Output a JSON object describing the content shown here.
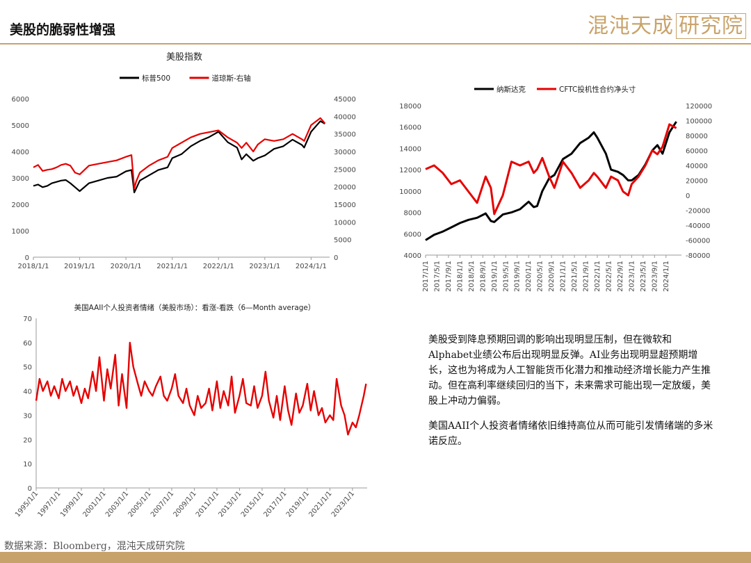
{
  "header": {
    "title": "美股的脆弱性增强",
    "logo_text": "混沌天成",
    "logo_boxed": "研究院"
  },
  "footer": {
    "source": "数据来源：Bloomberg，混沌天成研究院"
  },
  "commentary": {
    "p1": "美股受到降息预期回调的影响出现明显压制，但在微软和Alphabet业绩公布后出现明显反弹。AI业务出现明显超预期增长，这也为将成为人工智能货币化潜力和推动经济增长能力产生推动。但在高利率继续回归的当下，未来需求可能出现一定放缓，美股上冲动力偏弱。",
    "p2": "美国AAII个人投资者情绪依旧维持高位从而可能引发情绪端的多米诺反应。"
  },
  "colors": {
    "black_series": "#000000",
    "red_series": "#e60000",
    "gold": "#c8a26b"
  },
  "chart_data": [
    {
      "type": "line",
      "title": "美股指数",
      "series": [
        {
          "name": "标普500",
          "color": "#000000",
          "axis": "left",
          "x": [
            2018.0,
            2018.1,
            2018.2,
            2018.3,
            2018.4,
            2018.5,
            2018.6,
            2018.7,
            2018.8,
            2018.9,
            2019.0,
            2019.2,
            2019.4,
            2019.6,
            2019.8,
            2020.0,
            2020.12,
            2020.18,
            2020.22,
            2020.3,
            2020.5,
            2020.7,
            2020.9,
            2021.0,
            2021.2,
            2021.4,
            2021.6,
            2021.8,
            2022.0,
            2022.2,
            2022.4,
            2022.5,
            2022.6,
            2022.75,
            2022.85,
            2023.0,
            2023.2,
            2023.4,
            2023.6,
            2023.8,
            2023.85,
            2024.0,
            2024.2,
            2024.3
          ],
          "values": [
            2700,
            2750,
            2650,
            2700,
            2800,
            2850,
            2900,
            2920,
            2800,
            2650,
            2500,
            2800,
            2900,
            3000,
            3050,
            3250,
            3300,
            2450,
            2600,
            2900,
            3100,
            3300,
            3400,
            3750,
            3900,
            4200,
            4400,
            4550,
            4750,
            4350,
            4150,
            3700,
            3900,
            3650,
            3750,
            3850,
            4100,
            4200,
            4450,
            4250,
            4150,
            4750,
            5150,
            5050
          ]
        },
        {
          "name": "道琼斯-右轴",
          "color": "#e60000",
          "axis": "right",
          "x": [
            2018.0,
            2018.1,
            2018.2,
            2018.3,
            2018.4,
            2018.5,
            2018.6,
            2018.7,
            2018.8,
            2018.9,
            2019.0,
            2019.2,
            2019.4,
            2019.6,
            2019.8,
            2020.0,
            2020.12,
            2020.18,
            2020.22,
            2020.3,
            2020.5,
            2020.7,
            2020.9,
            2021.0,
            2021.2,
            2021.4,
            2021.6,
            2021.8,
            2022.0,
            2022.2,
            2022.4,
            2022.5,
            2022.6,
            2022.75,
            2022.85,
            2023.0,
            2023.2,
            2023.4,
            2023.6,
            2023.8,
            2023.85,
            2024.0,
            2024.2,
            2024.3
          ],
          "values": [
            25500,
            26200,
            24500,
            24800,
            25000,
            25500,
            26200,
            26500,
            26000,
            24000,
            23500,
            26000,
            26500,
            27000,
            27500,
            28500,
            29000,
            19500,
            21500,
            24000,
            26000,
            27500,
            28500,
            31000,
            32500,
            34000,
            35000,
            35500,
            36000,
            34000,
            32500,
            31000,
            32500,
            30000,
            32000,
            33500,
            33000,
            33500,
            35000,
            33500,
            33000,
            37500,
            39500,
            38000
          ]
        }
      ],
      "xticks": [
        "2018/1/1",
        "2019/1/1",
        "2020/1/1",
        "2021/1/1",
        "2022/1/1",
        "2023/1/1",
        "2024/1/1"
      ],
      "ylim": [
        0,
        6000
      ],
      "yticks": [
        0,
        1000,
        2000,
        3000,
        4000,
        5000,
        6000
      ],
      "y2lim": [
        0,
        45000
      ],
      "y2ticks": [
        0,
        5000,
        10000,
        15000,
        20000,
        25000,
        30000,
        35000,
        40000,
        45000
      ],
      "legend": "top"
    },
    {
      "type": "line",
      "title": "",
      "series": [
        {
          "name": "纳斯达克",
          "color": "#000000",
          "axis": "left",
          "x": [
            2017.0,
            2017.25,
            2017.5,
            2017.75,
            2018.0,
            2018.25,
            2018.5,
            2018.75,
            2018.9,
            2019.0,
            2019.25,
            2019.5,
            2019.75,
            2020.0,
            2020.15,
            2020.25,
            2020.4,
            2020.6,
            2020.75,
            2021.0,
            2021.25,
            2021.5,
            2021.75,
            2021.9,
            2022.0,
            2022.25,
            2022.4,
            2022.6,
            2022.75,
            2022.9,
            2023.0,
            2023.2,
            2023.4,
            2023.6,
            2023.75,
            2023.9,
            2024.1,
            2024.3
          ],
          "values": [
            5400,
            5900,
            6200,
            6600,
            7000,
            7300,
            7500,
            7900,
            7200,
            7100,
            7800,
            8000,
            8300,
            9000,
            8500,
            8600,
            10000,
            11200,
            11500,
            13000,
            13500,
            14500,
            15000,
            15500,
            15000,
            13500,
            12000,
            11800,
            11500,
            11000,
            11000,
            11500,
            12500,
            13800,
            14300,
            13500,
            15500,
            16500
          ]
        },
        {
          "name": "CFTC投机性合约净头寸",
          "color": "#e60000",
          "axis": "right",
          "x": [
            2017.0,
            2017.25,
            2017.5,
            2017.75,
            2018.0,
            2018.25,
            2018.5,
            2018.75,
            2018.9,
            2019.0,
            2019.25,
            2019.5,
            2019.75,
            2020.0,
            2020.15,
            2020.25,
            2020.4,
            2020.6,
            2020.75,
            2021.0,
            2021.25,
            2021.5,
            2021.75,
            2021.9,
            2022.0,
            2022.25,
            2022.4,
            2022.6,
            2022.75,
            2022.9,
            2023.0,
            2023.2,
            2023.4,
            2023.6,
            2023.75,
            2023.9,
            2024.1,
            2024.3
          ],
          "values": [
            35000,
            40000,
            30000,
            15000,
            20000,
            5000,
            -10000,
            25000,
            10000,
            -25000,
            0,
            45000,
            40000,
            45000,
            30000,
            35000,
            50000,
            25000,
            10000,
            45000,
            30000,
            10000,
            20000,
            30000,
            25000,
            10000,
            25000,
            20000,
            5000,
            0,
            15000,
            25000,
            40000,
            60000,
            55000,
            65000,
            95000,
            90000
          ]
        }
      ],
      "xticks": [
        "2017/1/1",
        "2017/5/1",
        "2017/9/1",
        "2018/1/1",
        "2018/5/1",
        "2018/9/1",
        "2019/1/1",
        "2019/5/1",
        "2019/9/1",
        "2020/1/1",
        "2020/5/1",
        "2020/9/1",
        "2021/1/1",
        "2021/5/1",
        "2021/9/1",
        "2022/1/1",
        "2022/5/1",
        "2022/9/1",
        "2023/1/1",
        "2023/5/1",
        "2023/9/1",
        "2024/1/1"
      ],
      "ylim": [
        4000,
        18000
      ],
      "yticks": [
        4000,
        6000,
        8000,
        10000,
        12000,
        14000,
        16000,
        18000
      ],
      "y2lim": [
        -80000,
        120000
      ],
      "y2ticks": [
        -80000,
        -60000,
        -40000,
        -20000,
        0,
        20000,
        40000,
        60000,
        80000,
        100000,
        120000
      ],
      "legend": "top"
    },
    {
      "type": "line",
      "title": "美国AAII个人投资者情绪（美股市场）：看涨-看跌（6—Month average）",
      "series": [
        {
          "name": "",
          "color": "#e60000",
          "axis": "left",
          "x": [
            1995.0,
            1995.3,
            1995.6,
            1996.0,
            1996.3,
            1996.6,
            1997.0,
            1997.3,
            1997.6,
            1998.0,
            1998.3,
            1998.6,
            1999.0,
            1999.3,
            1999.6,
            2000.0,
            2000.3,
            2000.6,
            2001.0,
            2001.3,
            2001.6,
            2002.0,
            2002.3,
            2002.6,
            2003.0,
            2003.3,
            2003.6,
            2004.0,
            2004.3,
            2004.6,
            2005.0,
            2005.3,
            2005.6,
            2006.0,
            2006.3,
            2006.6,
            2007.0,
            2007.3,
            2007.6,
            2008.0,
            2008.3,
            2008.6,
            2009.0,
            2009.3,
            2009.6,
            2010.0,
            2010.3,
            2010.6,
            2011.0,
            2011.3,
            2011.6,
            2012.0,
            2012.3,
            2012.6,
            2013.0,
            2013.3,
            2013.6,
            2014.0,
            2014.3,
            2014.6,
            2015.0,
            2015.3,
            2015.6,
            2016.0,
            2016.3,
            2016.6,
            2017.0,
            2017.3,
            2017.6,
            2018.0,
            2018.3,
            2018.6,
            2019.0,
            2019.3,
            2019.6,
            2020.0,
            2020.3,
            2020.6,
            2021.0,
            2021.3,
            2021.6,
            2022.0,
            2022.3,
            2022.6,
            2023.0,
            2023.3,
            2023.6,
            2024.0,
            2024.2
          ],
          "values": [
            36,
            45,
            40,
            44,
            38,
            42,
            37,
            45,
            40,
            44,
            38,
            42,
            35,
            41,
            37,
            48,
            40,
            54,
            36,
            49,
            41,
            55,
            34,
            47,
            33,
            60,
            50,
            43,
            38,
            44,
            40,
            38,
            42,
            46,
            38,
            36,
            41,
            47,
            38,
            35,
            41,
            34,
            30,
            38,
            33,
            35,
            41,
            32,
            44,
            33,
            40,
            34,
            46,
            31,
            38,
            45,
            35,
            34,
            42,
            33,
            38,
            48,
            36,
            29,
            38,
            28,
            42,
            32,
            26,
            39,
            31,
            34,
            43,
            32,
            40,
            30,
            33,
            27,
            30,
            28,
            45,
            34,
            30,
            22,
            27,
            25,
            30,
            38,
            43
          ]
        }
      ],
      "xticks": [
        "1995/1/1",
        "1997/1/1",
        "1999/1/1",
        "2001/1/1",
        "2003/1/1",
        "2005/1/1",
        "2007/1/1",
        "2009/1/1",
        "2011/1/1",
        "2013/1/1",
        "2015/1/1",
        "2017/1/1",
        "2019/1/1",
        "2021/1/1",
        "2023/1/1"
      ],
      "ylim": [
        0,
        70
      ],
      "yticks": [
        0,
        10,
        20,
        30,
        40,
        50,
        60,
        70
      ],
      "legend": "none"
    }
  ]
}
